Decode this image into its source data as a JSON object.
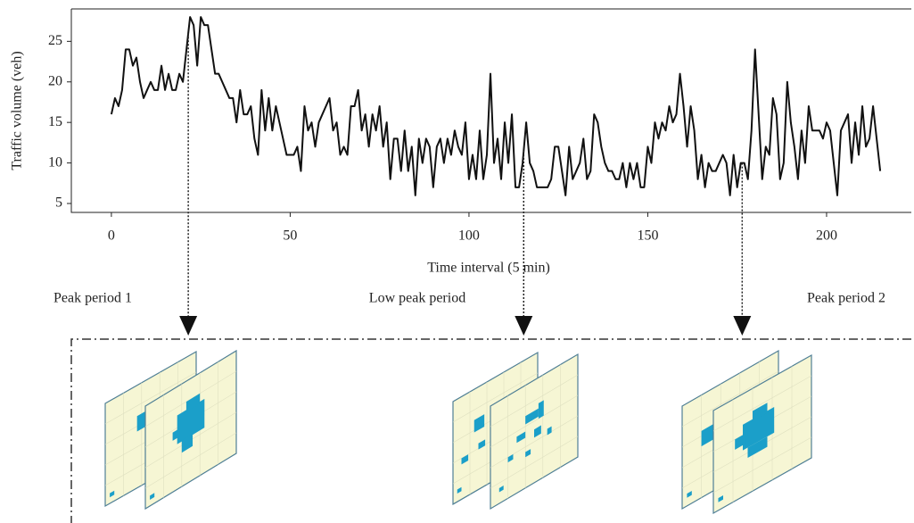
{
  "chart_data": {
    "type": "line",
    "ylabel": "Traffic volume (veh)",
    "xlabel": "Time interval (5 min)",
    "x": [
      0,
      1,
      2,
      3,
      4,
      5,
      6,
      7,
      8,
      9,
      10,
      11,
      12,
      13,
      14,
      15,
      16,
      17,
      18,
      19,
      20,
      21,
      22,
      23,
      24,
      25,
      26,
      27,
      28,
      29,
      30,
      31,
      32,
      33,
      34,
      35,
      36,
      37,
      38,
      39,
      40,
      41,
      42,
      43,
      44,
      45,
      46,
      47,
      48,
      49,
      50,
      51,
      52,
      53,
      54,
      55,
      56,
      57,
      58,
      59,
      60,
      61,
      62,
      63,
      64,
      65,
      66,
      67,
      68,
      69,
      70,
      71,
      72,
      73,
      74,
      75,
      76,
      77,
      78,
      79,
      80,
      81,
      82,
      83,
      84,
      85,
      86,
      87,
      88,
      89,
      90,
      91,
      92,
      93,
      94,
      95,
      96,
      97,
      98,
      99,
      100,
      101,
      102,
      103,
      104,
      105,
      106,
      107,
      108,
      109,
      110,
      111,
      112,
      113,
      114,
      115,
      116,
      117,
      118,
      119,
      120,
      121,
      122,
      123,
      124,
      125,
      126,
      127,
      128,
      129,
      130,
      131,
      132,
      133,
      134,
      135,
      136,
      137,
      138,
      139,
      140,
      141,
      142,
      143,
      144,
      145,
      146,
      147,
      148,
      149,
      150,
      151,
      152,
      153,
      154,
      155,
      156,
      157,
      158,
      159,
      160,
      161,
      162,
      163,
      164,
      165,
      166,
      167,
      168,
      169,
      170,
      171,
      172,
      173,
      174,
      175,
      176,
      177,
      178,
      179,
      180,
      181,
      182,
      183,
      184,
      185,
      186,
      187,
      188,
      189,
      190,
      191,
      192,
      193,
      194,
      195,
      196,
      197,
      198,
      199,
      200,
      201,
      202,
      203,
      204,
      205,
      206,
      207,
      208,
      209,
      210,
      211,
      212,
      213,
      214,
      215
    ],
    "series": [
      {
        "color": "#111111",
        "values": [
          16,
          18,
          17,
          19,
          24,
          24,
          22,
          23,
          20,
          18,
          19,
          20,
          19,
          19,
          22,
          19,
          21,
          19,
          19,
          21,
          20,
          24,
          28,
          27,
          22,
          28,
          27,
          27,
          24,
          21,
          21,
          20,
          19,
          18,
          18,
          15,
          19,
          16,
          16,
          17,
          13,
          11,
          19,
          14,
          18,
          14,
          17,
          15,
          13,
          11,
          11,
          11,
          12,
          9,
          17,
          14,
          15,
          12,
          15,
          16,
          17,
          18,
          14,
          15,
          11,
          12,
          11,
          17,
          17,
          19,
          14,
          16,
          12,
          16,
          14,
          17,
          12,
          15,
          8,
          13,
          13,
          9,
          14,
          9,
          12,
          6,
          13,
          10,
          13,
          12,
          7,
          12,
          13,
          10,
          13,
          11,
          14,
          12,
          11,
          15,
          8,
          11,
          8,
          14,
          8,
          11,
          21,
          10,
          13,
          8,
          15,
          10,
          16,
          7,
          7,
          10,
          15,
          10,
          9,
          7,
          7,
          7,
          7,
          8,
          12,
          12,
          9,
          6,
          12,
          8,
          9,
          10,
          13,
          8,
          9,
          16,
          15,
          12,
          10,
          9,
          9,
          8,
          8,
          10,
          7,
          10,
          8,
          10,
          7,
          7,
          12,
          10,
          15,
          13,
          15,
          14,
          17,
          15,
          16,
          21,
          17,
          12,
          17,
          14,
          8,
          11,
          7,
          10,
          9,
          9,
          10,
          11,
          10,
          6,
          11,
          7,
          10,
          10,
          8,
          14,
          24,
          16,
          8,
          12,
          11,
          18,
          16,
          8,
          10,
          20,
          15,
          12,
          8,
          14,
          10,
          17,
          14,
          14,
          14,
          13,
          15,
          14,
          10,
          6,
          14,
          15,
          16,
          10,
          15,
          11,
          17,
          12,
          13,
          17,
          13,
          9
        ]
      }
    ],
    "xlim": [
      -11.2,
      223.7
    ],
    "ylim": [
      3.9,
      29
    ],
    "xticks": [
      0,
      50,
      100,
      150,
      200
    ],
    "yticks": [
      5,
      10,
      15,
      20,
      25
    ],
    "grid": false,
    "period_markers": [
      {
        "label": "Peak period 1",
        "x": 21.5
      },
      {
        "label": "Low peak period",
        "x": 115.3
      },
      {
        "label": "Peak period 2",
        "x": 176.4
      }
    ]
  }
}
